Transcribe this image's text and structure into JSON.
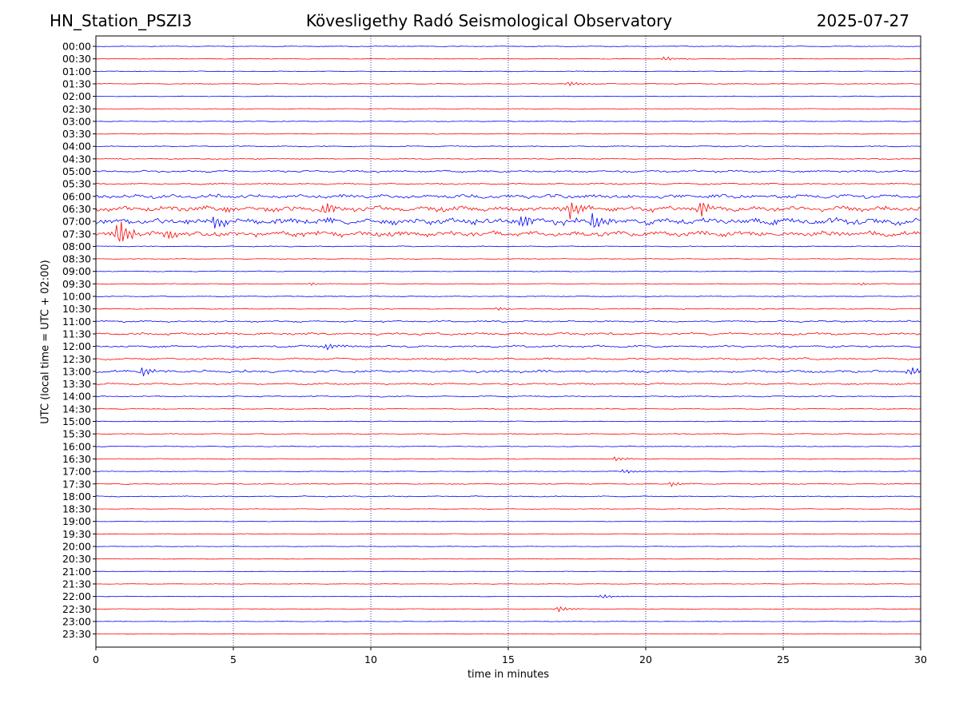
{
  "header": {
    "station": "HN_Station_PSZI3",
    "observatory": "Kövesligethy Radó Seismological Observatory",
    "date": "2025-07-27"
  },
  "chart_data": {
    "type": "line",
    "xlabel": "time in minutes",
    "ylabel": "UTC (local time = UTC + 02:00)",
    "xlim": [
      0,
      30
    ],
    "xticks": [
      0,
      5,
      10,
      15,
      20,
      25,
      30
    ],
    "vertical_gridlines": [
      5,
      10,
      15,
      20,
      25
    ],
    "colors": {
      "even_hour": "#0000ff",
      "half_hour": "#ff0000",
      "grid": "#000080"
    },
    "rows": [
      {
        "label": "00:00",
        "amp": 0.6
      },
      {
        "label": "00:30",
        "amp": 0.5
      },
      {
        "label": "01:00",
        "amp": 0.5
      },
      {
        "label": "01:30",
        "amp": 0.6
      },
      {
        "label": "02:00",
        "amp": 0.5
      },
      {
        "label": "02:30",
        "amp": 0.5
      },
      {
        "label": "03:00",
        "amp": 0.6
      },
      {
        "label": "03:30",
        "amp": 0.6
      },
      {
        "label": "04:00",
        "amp": 0.8
      },
      {
        "label": "04:30",
        "amp": 0.8
      },
      {
        "label": "05:00",
        "amp": 1.6
      },
      {
        "label": "05:30",
        "amp": 1.1
      },
      {
        "label": "06:00",
        "amp": 3.0
      },
      {
        "label": "06:30",
        "amp": 4.0
      },
      {
        "label": "07:00",
        "amp": 5.0
      },
      {
        "label": "07:30",
        "amp": 4.0
      },
      {
        "label": "08:00",
        "amp": 0.7
      },
      {
        "label": "08:30",
        "amp": 0.6
      },
      {
        "label": "09:00",
        "amp": 0.6
      },
      {
        "label": "09:30",
        "amp": 0.6
      },
      {
        "label": "10:00",
        "amp": 0.6
      },
      {
        "label": "10:30",
        "amp": 0.8
      },
      {
        "label": "11:00",
        "amp": 1.3
      },
      {
        "label": "11:30",
        "amp": 1.8
      },
      {
        "label": "12:00",
        "amp": 1.6
      },
      {
        "label": "12:30",
        "amp": 1.5
      },
      {
        "label": "13:00",
        "amp": 2.0
      },
      {
        "label": "13:30",
        "amp": 1.3
      },
      {
        "label": "14:00",
        "amp": 0.9
      },
      {
        "label": "14:30",
        "amp": 0.7
      },
      {
        "label": "15:00",
        "amp": 0.6
      },
      {
        "label": "15:30",
        "amp": 0.6
      },
      {
        "label": "16:00",
        "amp": 0.6
      },
      {
        "label": "16:30",
        "amp": 0.6
      },
      {
        "label": "17:00",
        "amp": 0.6
      },
      {
        "label": "17:30",
        "amp": 0.8
      },
      {
        "label": "18:00",
        "amp": 0.8
      },
      {
        "label": "18:30",
        "amp": 0.5
      },
      {
        "label": "19:00",
        "amp": 0.4
      },
      {
        "label": "19:30",
        "amp": 0.4
      },
      {
        "label": "20:00",
        "amp": 0.4
      },
      {
        "label": "20:30",
        "amp": 0.4
      },
      {
        "label": "21:00",
        "amp": 0.4
      },
      {
        "label": "21:30",
        "amp": 0.4
      },
      {
        "label": "22:00",
        "amp": 0.4
      },
      {
        "label": "22:30",
        "amp": 0.4
      },
      {
        "label": "23:00",
        "amp": 0.4
      },
      {
        "label": "23:30",
        "amp": 0.4
      }
    ],
    "events": [
      {
        "row": "00:30",
        "x": 20.7,
        "amp": 3
      },
      {
        "row": "01:30",
        "x": 17.2,
        "amp": 3
      },
      {
        "row": "06:30",
        "x": 17.2,
        "amp": 14
      },
      {
        "row": "06:30",
        "x": 22.0,
        "amp": 12
      },
      {
        "row": "06:30",
        "x": 8.3,
        "amp": 8
      },
      {
        "row": "07:00",
        "x": 4.3,
        "amp": 10
      },
      {
        "row": "07:00",
        "x": 18.1,
        "amp": 12
      },
      {
        "row": "07:00",
        "x": 15.5,
        "amp": 10
      },
      {
        "row": "07:30",
        "x": 0.8,
        "amp": 20
      },
      {
        "row": "07:30",
        "x": 2.6,
        "amp": 9
      },
      {
        "row": "07:30",
        "x": 8.6,
        "amp": 4
      },
      {
        "row": "09:30",
        "x": 7.8,
        "amp": 2
      },
      {
        "row": "09:30",
        "x": 27.8,
        "amp": 2
      },
      {
        "row": "10:30",
        "x": 14.6,
        "amp": 2
      },
      {
        "row": "12:00",
        "x": 8.4,
        "amp": 5
      },
      {
        "row": "13:00",
        "x": 1.7,
        "amp": 6
      },
      {
        "row": "13:00",
        "x": 29.6,
        "amp": 6
      },
      {
        "row": "16:30",
        "x": 18.9,
        "amp": 3
      },
      {
        "row": "17:00",
        "x": 19.2,
        "amp": 3
      },
      {
        "row": "17:30",
        "x": 20.9,
        "amp": 3
      },
      {
        "row": "22:00",
        "x": 18.4,
        "amp": 3
      },
      {
        "row": "22:30",
        "x": 16.8,
        "amp": 4
      }
    ]
  }
}
